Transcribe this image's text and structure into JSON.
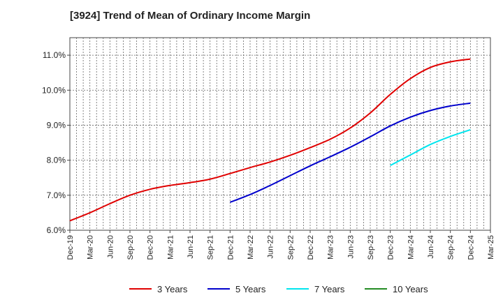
{
  "chart_data": {
    "type": "line",
    "title": "[3924]  Trend of Mean of Ordinary Income Margin",
    "xlabel": "",
    "ylabel": "",
    "x": [
      "Dec-19",
      "Mar-20",
      "Jun-20",
      "Sep-20",
      "Dec-20",
      "Mar-21",
      "Jun-21",
      "Sep-21",
      "Dec-21",
      "Mar-22",
      "Jun-22",
      "Sep-22",
      "Dec-22",
      "Mar-23",
      "Jun-23",
      "Sep-23",
      "Dec-23",
      "Mar-24",
      "Jun-24",
      "Sep-24",
      "Dec-24",
      "Mar-25"
    ],
    "y_ticks": [
      "6.0%",
      "7.0%",
      "8.0%",
      "9.0%",
      "10.0%",
      "11.0%"
    ],
    "ylim": [
      6.0,
      11.5
    ],
    "grid": true,
    "legend_position": "bottom",
    "series": [
      {
        "name": "3 Years",
        "color": "#e00000",
        "values": [
          6.27,
          6.5,
          6.76,
          7.0,
          7.17,
          7.28,
          7.36,
          7.46,
          7.62,
          7.79,
          7.95,
          8.14,
          8.36,
          8.6,
          8.92,
          9.35,
          9.88,
          10.33,
          10.65,
          10.81,
          10.89,
          null
        ]
      },
      {
        "name": "5 Years",
        "color": "#0000cc",
        "values": [
          null,
          null,
          null,
          null,
          null,
          null,
          null,
          null,
          6.8,
          7.02,
          7.28,
          7.56,
          7.84,
          8.1,
          8.37,
          8.67,
          8.98,
          9.23,
          9.42,
          9.55,
          9.63,
          null
        ]
      },
      {
        "name": "7 Years",
        "color": "#00e5ee",
        "values": [
          null,
          null,
          null,
          null,
          null,
          null,
          null,
          null,
          null,
          null,
          null,
          null,
          null,
          null,
          null,
          null,
          7.85,
          8.15,
          8.45,
          8.68,
          8.87,
          null
        ]
      },
      {
        "name": "10 Years",
        "color": "#228b22",
        "values": [
          null,
          null,
          null,
          null,
          null,
          null,
          null,
          null,
          null,
          null,
          null,
          null,
          null,
          null,
          null,
          null,
          null,
          null,
          null,
          null,
          null,
          null
        ]
      }
    ]
  }
}
